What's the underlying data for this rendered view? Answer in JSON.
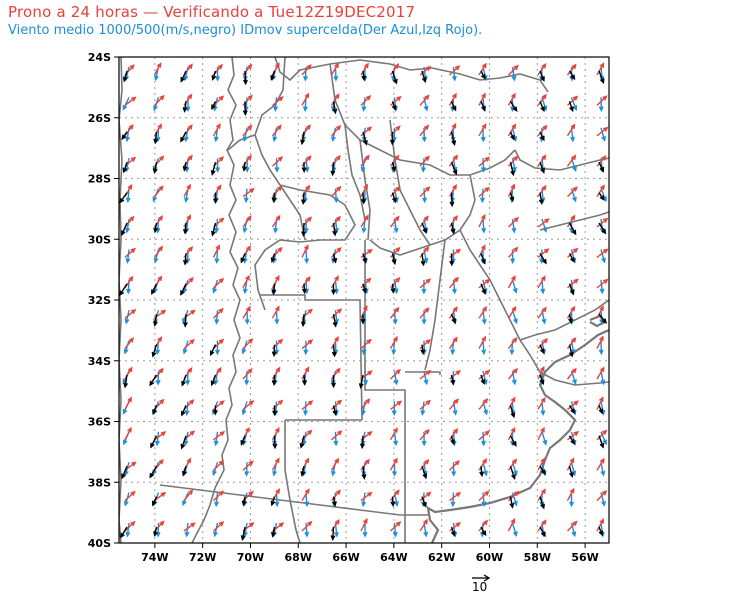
{
  "title": "Prono a 24 horas — Verificando a Tue12Z19DEC2017",
  "subtitle": "Viento medio 1000/500(m/s,negro) IDmov supercelda(Der Azul,Izq Rojo).",
  "map": {
    "lat_range": [
      -40,
      -24
    ],
    "lon_range": [
      -75.5,
      -55
    ],
    "lat_labels": [
      "24S",
      "26S",
      "28S",
      "30S",
      "32S",
      "34S",
      "36S",
      "38S",
      "40S"
    ],
    "lon_labels": [
      "74W",
      "72W",
      "70W",
      "68W",
      "66W",
      "64W",
      "62W",
      "60W",
      "58W",
      "56W"
    ],
    "grid": "dotted",
    "vector_layers": [
      {
        "name": "Viento medio 1000/500",
        "color": "#000000"
      },
      {
        "name": "IDmov Der",
        "color": "#1b8ed8"
      },
      {
        "name": "IDmov Izq",
        "color": "#e8413a"
      }
    ],
    "reference_vector": "10",
    "border_color": "#777777"
  }
}
